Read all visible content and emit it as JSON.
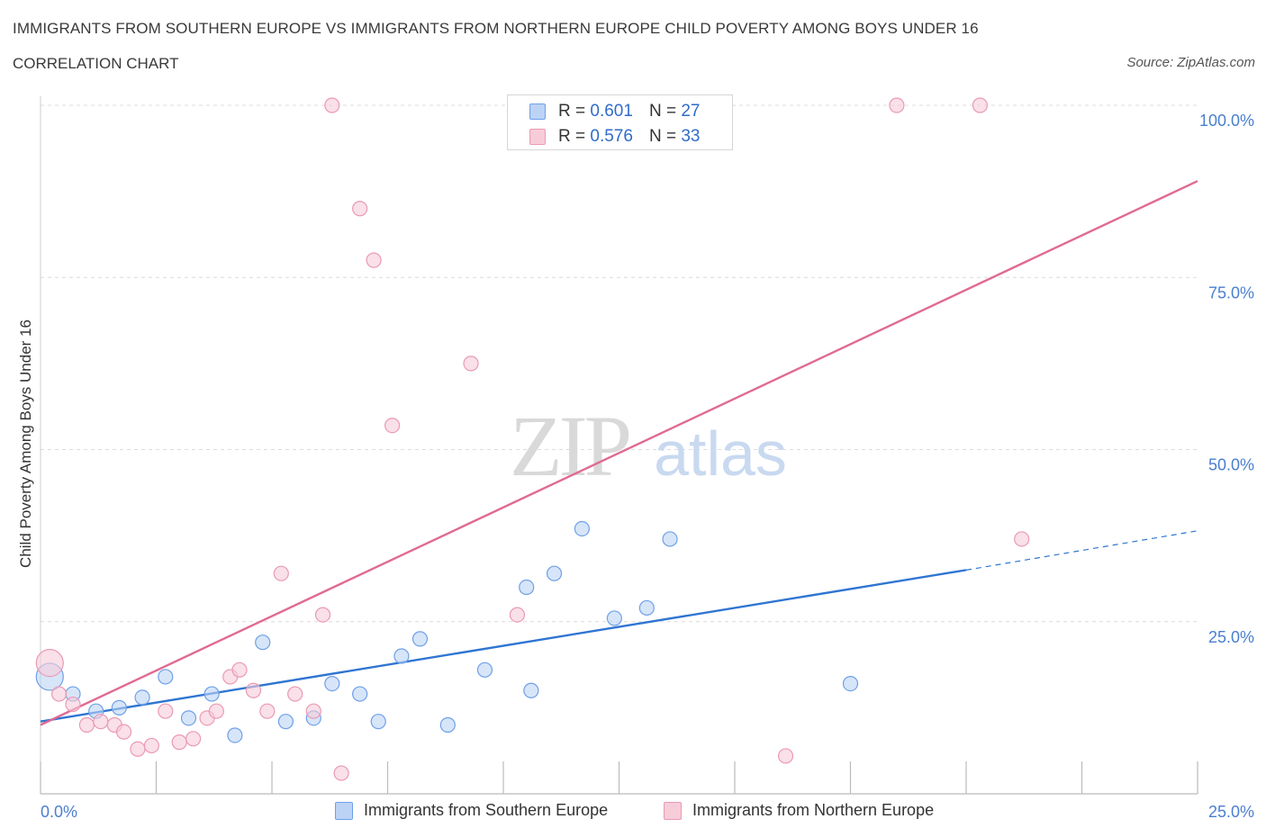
{
  "title": "IMMIGRANTS FROM SOUTHERN EUROPE VS IMMIGRANTS FROM NORTHERN EUROPE CHILD POVERTY AMONG BOYS UNDER 16",
  "subtitle": "CORRELATION CHART",
  "source": "Source: ZipAtlas.com",
  "watermark": {
    "zip": "ZIP",
    "atlas": "atlas"
  },
  "legend": {
    "r_label": "R =",
    "n_label": "N =",
    "series1": {
      "r": "0.601",
      "n": "27"
    },
    "series2": {
      "r": "0.576",
      "n": "33"
    }
  },
  "chart_data": {
    "type": "scatter",
    "title": "IMMIGRANTS FROM SOUTHERN EUROPE VS IMMIGRANTS FROM NORTHERN EUROPE CHILD POVERTY AMONG BOYS UNDER 16",
    "xlabel": "",
    "ylabel": "Child Poverty Among Boys Under 16",
    "xlim": [
      0,
      25
    ],
    "ylim": [
      0,
      100
    ],
    "x_tick_labels": [
      "0.0%",
      "25.0%"
    ],
    "y_ticks": [
      25,
      50,
      75,
      100
    ],
    "y_tick_labels": [
      "25.0%",
      "50.0%",
      "75.0%",
      "100.0%"
    ],
    "grid": true,
    "legend_position": "top-center",
    "series": [
      {
        "name": "Immigrants from Southern Europe",
        "color": "#6fa0e8",
        "fill": "#bcd3f5",
        "line_color": "#2f75d2",
        "trend": {
          "x0": 0,
          "y0": 10.5,
          "x1": 20,
          "y1": 32.5,
          "dashed_to_x": 25,
          "dashed_to_y": 38.2
        },
        "points": [
          {
            "x": 0.2,
            "y": 17.0,
            "big": true
          },
          {
            "x": 0.7,
            "y": 14.5
          },
          {
            "x": 1.2,
            "y": 12.0
          },
          {
            "x": 1.7,
            "y": 12.5
          },
          {
            "x": 2.2,
            "y": 14.0
          },
          {
            "x": 2.7,
            "y": 17.0
          },
          {
            "x": 3.2,
            "y": 11.0
          },
          {
            "x": 3.7,
            "y": 14.5
          },
          {
            "x": 4.2,
            "y": 8.5
          },
          {
            "x": 4.8,
            "y": 22.0
          },
          {
            "x": 5.3,
            "y": 10.5
          },
          {
            "x": 5.9,
            "y": 11.0
          },
          {
            "x": 6.3,
            "y": 16.0
          },
          {
            "x": 6.9,
            "y": 14.5
          },
          {
            "x": 7.3,
            "y": 10.5
          },
          {
            "x": 7.8,
            "y": 20.0
          },
          {
            "x": 8.2,
            "y": 22.5
          },
          {
            "x": 8.8,
            "y": 10.0
          },
          {
            "x": 9.6,
            "y": 18.0
          },
          {
            "x": 10.5,
            "y": 30.0
          },
          {
            "x": 10.6,
            "y": 15.0
          },
          {
            "x": 11.1,
            "y": 32.0
          },
          {
            "x": 11.7,
            "y": 38.5
          },
          {
            "x": 12.4,
            "y": 25.5
          },
          {
            "x": 13.1,
            "y": 27.0
          },
          {
            "x": 13.6,
            "y": 37.0
          },
          {
            "x": 17.5,
            "y": 16.0
          }
        ]
      },
      {
        "name": "Immigrants from Northern Europe",
        "color": "#ea9ab3",
        "fill": "#f7ccd9",
        "line_color": "#e06a94",
        "trend": {
          "x0": 0,
          "y0": 10.0,
          "x1": 25,
          "y1": 89.0
        },
        "points": [
          {
            "x": 0.2,
            "y": 19.0,
            "big": true
          },
          {
            "x": 0.4,
            "y": 14.5
          },
          {
            "x": 0.7,
            "y": 13.0
          },
          {
            "x": 1.0,
            "y": 10.0
          },
          {
            "x": 1.3,
            "y": 10.5
          },
          {
            "x": 1.6,
            "y": 10.0
          },
          {
            "x": 1.8,
            "y": 9.0
          },
          {
            "x": 2.1,
            "y": 6.5
          },
          {
            "x": 2.4,
            "y": 7.0
          },
          {
            "x": 2.7,
            "y": 12.0
          },
          {
            "x": 3.0,
            "y": 7.5
          },
          {
            "x": 3.3,
            "y": 8.0
          },
          {
            "x": 3.6,
            "y": 11.0
          },
          {
            "x": 3.8,
            "y": 12.0
          },
          {
            "x": 4.1,
            "y": 17.0
          },
          {
            "x": 4.3,
            "y": 18.0
          },
          {
            "x": 4.6,
            "y": 15.0
          },
          {
            "x": 4.9,
            "y": 12.0
          },
          {
            "x": 5.2,
            "y": 32.0
          },
          {
            "x": 5.5,
            "y": 14.5
          },
          {
            "x": 5.9,
            "y": 12.0
          },
          {
            "x": 6.1,
            "y": 26.0
          },
          {
            "x": 6.3,
            "y": 100.0
          },
          {
            "x": 6.5,
            "y": 3.0
          },
          {
            "x": 6.9,
            "y": 85.0
          },
          {
            "x": 7.2,
            "y": 77.5
          },
          {
            "x": 7.6,
            "y": 53.5
          },
          {
            "x": 9.3,
            "y": 62.5
          },
          {
            "x": 10.3,
            "y": 26.0
          },
          {
            "x": 16.1,
            "y": 5.5
          },
          {
            "x": 18.5,
            "y": 100.0
          },
          {
            "x": 20.3,
            "y": 100.0
          },
          {
            "x": 21.2,
            "y": 37.0
          }
        ]
      }
    ]
  }
}
